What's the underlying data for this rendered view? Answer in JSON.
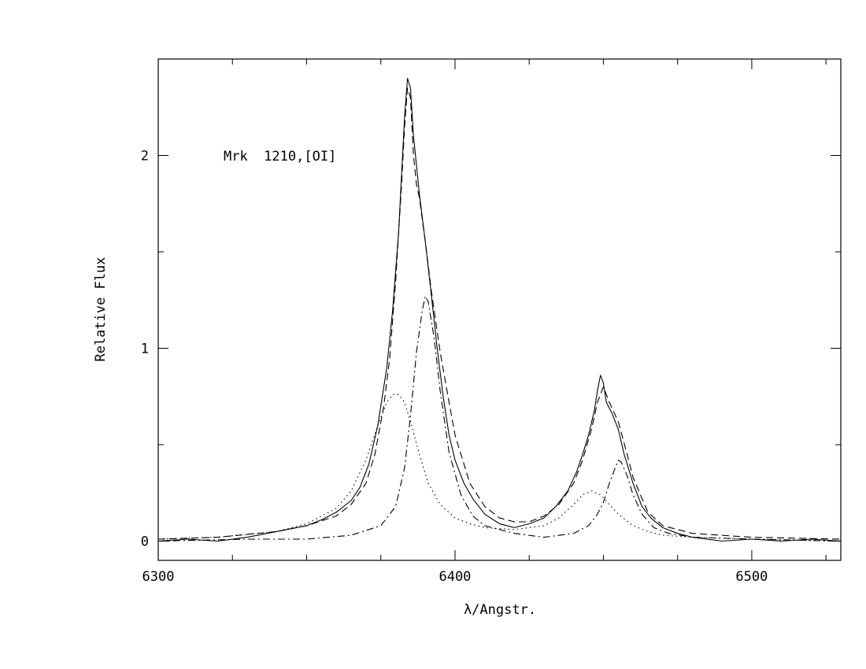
{
  "chart_data": {
    "type": "line",
    "title": "",
    "annotation": "Mrk  1210,[OI]",
    "xlabel": "λ/Angstr.",
    "ylabel": "Relative Flux",
    "xlim": [
      6300,
      6530
    ],
    "ylim": [
      -0.1,
      2.5
    ],
    "xticks": [
      6300,
      6400,
      6500
    ],
    "yticks": [
      0,
      1,
      2
    ],
    "xtick_labels": [
      "6300",
      "6400",
      "6500"
    ],
    "ytick_labels": [
      "0",
      "1",
      "2"
    ],
    "grid": false,
    "legend": "none",
    "series": [
      {
        "style": "solid",
        "x": [
          6300,
          6310,
          6320,
          6330,
          6340,
          6350,
          6355,
          6360,
          6365,
          6368,
          6371,
          6374,
          6377,
          6379,
          6381,
          6382,
          6383,
          6384,
          6385,
          6386,
          6387,
          6388,
          6390,
          6392,
          6394,
          6396,
          6398,
          6400,
          6403,
          6406,
          6410,
          6415,
          6420,
          6425,
          6430,
          6434,
          6438,
          6441,
          6443,
          6445,
          6447,
          6448,
          6449,
          6450,
          6451,
          6453,
          6455,
          6457,
          6460,
          6463,
          6466,
          6470,
          6475,
          6480,
          6490,
          6500,
          6510,
          6520,
          6530
        ],
        "y": [
          0.0,
          0.01,
          0.0,
          0.02,
          0.05,
          0.08,
          0.11,
          0.15,
          0.21,
          0.28,
          0.4,
          0.6,
          0.9,
          1.2,
          1.6,
          1.9,
          2.2,
          2.4,
          2.35,
          2.1,
          1.95,
          1.8,
          1.55,
          1.28,
          1.0,
          0.75,
          0.55,
          0.42,
          0.3,
          0.22,
          0.14,
          0.09,
          0.07,
          0.09,
          0.12,
          0.18,
          0.26,
          0.36,
          0.45,
          0.55,
          0.68,
          0.78,
          0.86,
          0.82,
          0.72,
          0.66,
          0.58,
          0.45,
          0.3,
          0.18,
          0.12,
          0.07,
          0.04,
          0.02,
          0.0,
          0.01,
          0.0,
          0.01,
          0.0
        ]
      },
      {
        "style": "dashed",
        "x": [
          6300,
          6320,
          6340,
          6350,
          6360,
          6365,
          6370,
          6373,
          6376,
          6378,
          6380,
          6382,
          6383,
          6384,
          6385,
          6386,
          6387,
          6388,
          6390,
          6392,
          6395,
          6398,
          6400,
          6405,
          6410,
          6415,
          6420,
          6425,
          6430,
          6435,
          6440,
          6443,
          6446,
          6448,
          6450,
          6452,
          6455,
          6458,
          6460,
          6465,
          6470,
          6480,
          6500,
          6530
        ],
        "y": [
          0.01,
          0.02,
          0.05,
          0.08,
          0.13,
          0.19,
          0.3,
          0.45,
          0.7,
          0.95,
          1.35,
          1.85,
          2.15,
          2.35,
          2.3,
          2.0,
          1.85,
          1.78,
          1.55,
          1.3,
          0.98,
          0.72,
          0.55,
          0.3,
          0.18,
          0.12,
          0.1,
          0.1,
          0.13,
          0.19,
          0.3,
          0.42,
          0.58,
          0.72,
          0.8,
          0.72,
          0.62,
          0.45,
          0.33,
          0.15,
          0.08,
          0.04,
          0.02,
          0.01
        ]
      },
      {
        "style": "dotted",
        "name": "",
        "x": [
          6300,
          6320,
          6340,
          6350,
          6360,
          6365,
          6370,
          6374,
          6377,
          6379,
          6381,
          6383,
          6385,
          6388,
          6391,
          6395,
          6400,
          6405,
          6410,
          6420,
          6430,
          6435,
          6440,
          6443,
          6446,
          6449,
          6452,
          6455,
          6460,
          6465,
          6470,
          6480,
          6500,
          6530
        ],
        "y": [
          0.01,
          0.02,
          0.05,
          0.09,
          0.17,
          0.26,
          0.42,
          0.6,
          0.72,
          0.76,
          0.76,
          0.72,
          0.62,
          0.45,
          0.3,
          0.19,
          0.12,
          0.09,
          0.07,
          0.06,
          0.08,
          0.12,
          0.19,
          0.24,
          0.26,
          0.24,
          0.19,
          0.14,
          0.08,
          0.05,
          0.03,
          0.02,
          0.01,
          0.0
        ]
      },
      {
        "style": "dashdot",
        "x": [
          6300,
          6330,
          6350,
          6365,
          6375,
          6380,
          6383,
          6385,
          6387,
          6389,
          6390,
          6391,
          6393,
          6395,
          6398,
          6402,
          6406,
          6410,
          6420,
          6430,
          6440,
          6445,
          6448,
          6450,
          6452,
          6454,
          6455,
          6456,
          6458,
          6460,
          6463,
          6467,
          6472,
          6480,
          6500,
          6530
        ],
        "y": [
          0.0,
          0.01,
          0.01,
          0.03,
          0.08,
          0.18,
          0.38,
          0.65,
          0.98,
          1.2,
          1.27,
          1.24,
          1.05,
          0.78,
          0.46,
          0.24,
          0.13,
          0.08,
          0.04,
          0.02,
          0.04,
          0.08,
          0.14,
          0.2,
          0.3,
          0.38,
          0.42,
          0.41,
          0.34,
          0.24,
          0.14,
          0.07,
          0.04,
          0.02,
          0.01,
          0.0
        ]
      }
    ]
  }
}
